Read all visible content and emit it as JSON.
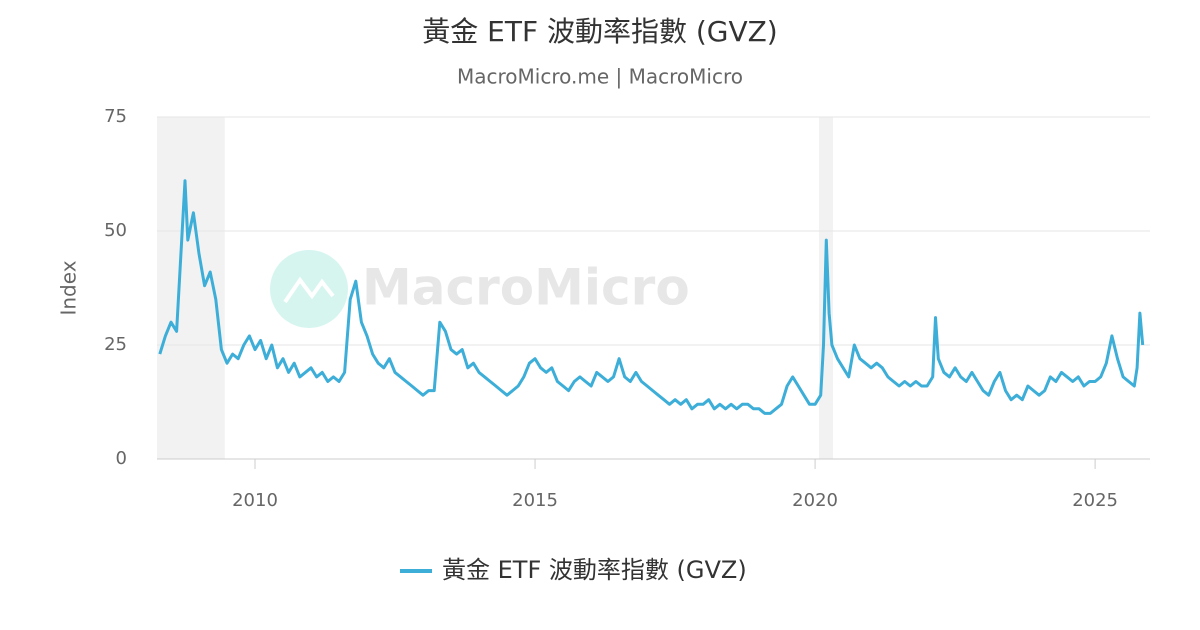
{
  "chart_data": {
    "type": "line",
    "title": "黃金 ETF 波動率指數 (GVZ)",
    "subtitle": "MacroMicro.me | MacroMicro",
    "y_label": "Index",
    "watermark": "MacroMicro",
    "xlim": [
      2008.25,
      2025.98
    ],
    "xticks": [
      2010,
      2015,
      2020,
      2025
    ],
    "ylim": [
      0,
      75
    ],
    "yticks": [
      0,
      25,
      50,
      75
    ],
    "grid": true,
    "legend": "bottom",
    "shaded_ranges": [
      [
        2008.25,
        2009.46
      ],
      [
        2020.07,
        2020.32
      ]
    ],
    "x": [
      2008.3,
      2008.4,
      2008.5,
      2008.6,
      2008.7,
      2008.75,
      2008.8,
      2008.9,
      2009.0,
      2009.1,
      2009.2,
      2009.3,
      2009.4,
      2009.5,
      2009.6,
      2009.7,
      2009.8,
      2009.9,
      2010.0,
      2010.1,
      2010.2,
      2010.3,
      2010.4,
      2010.5,
      2010.6,
      2010.7,
      2010.8,
      2010.9,
      2011.0,
      2011.1,
      2011.2,
      2011.3,
      2011.4,
      2011.5,
      2011.6,
      2011.7,
      2011.8,
      2011.9,
      2012.0,
      2012.1,
      2012.2,
      2012.3,
      2012.4,
      2012.5,
      2012.6,
      2012.7,
      2012.8,
      2012.9,
      2013.0,
      2013.1,
      2013.2,
      2013.3,
      2013.4,
      2013.5,
      2013.6,
      2013.7,
      2013.8,
      2013.9,
      2014.0,
      2014.1,
      2014.2,
      2014.3,
      2014.4,
      2014.5,
      2014.6,
      2014.7,
      2014.8,
      2014.9,
      2015.0,
      2015.1,
      2015.2,
      2015.3,
      2015.4,
      2015.5,
      2015.6,
      2015.7,
      2015.8,
      2015.9,
      2016.0,
      2016.1,
      2016.2,
      2016.3,
      2016.4,
      2016.5,
      2016.6,
      2016.7,
      2016.8,
      2016.9,
      2017.0,
      2017.1,
      2017.2,
      2017.3,
      2017.4,
      2017.5,
      2017.6,
      2017.7,
      2017.8,
      2017.9,
      2018.0,
      2018.1,
      2018.2,
      2018.3,
      2018.4,
      2018.5,
      2018.6,
      2018.7,
      2018.8,
      2018.9,
      2019.0,
      2019.1,
      2019.2,
      2019.3,
      2019.4,
      2019.5,
      2019.6,
      2019.7,
      2019.8,
      2019.9,
      2020.0,
      2020.1,
      2020.15,
      2020.2,
      2020.25,
      2020.3,
      2020.4,
      2020.5,
      2020.6,
      2020.7,
      2020.8,
      2020.9,
      2021.0,
      2021.1,
      2021.2,
      2021.3,
      2021.4,
      2021.5,
      2021.6,
      2021.7,
      2021.8,
      2021.9,
      2022.0,
      2022.1,
      2022.15,
      2022.2,
      2022.3,
      2022.4,
      2022.5,
      2022.6,
      2022.7,
      2022.8,
      2022.9,
      2023.0,
      2023.1,
      2023.2,
      2023.3,
      2023.4,
      2023.5,
      2023.6,
      2023.7,
      2023.8,
      2023.9,
      2024.0,
      2024.1,
      2024.2,
      2024.3,
      2024.4,
      2024.5,
      2024.6,
      2024.7,
      2024.8,
      2024.9,
      2025.0,
      2025.1,
      2025.2,
      2025.3,
      2025.4,
      2025.5,
      2025.6,
      2025.7,
      2025.75,
      2025.8,
      2025.85
    ],
    "series": [
      {
        "name": "黃金 ETF 波動率指數 (GVZ)",
        "color": "#3daed8",
        "values": [
          23,
          27,
          30,
          28,
          50,
          61,
          48,
          54,
          45,
          38,
          41,
          35,
          24,
          21,
          23,
          22,
          25,
          27,
          24,
          26,
          22,
          25,
          20,
          22,
          19,
          21,
          18,
          19,
          20,
          18,
          19,
          17,
          18,
          17,
          19,
          35,
          39,
          30,
          27,
          23,
          21,
          20,
          22,
          19,
          18,
          17,
          16,
          15,
          14,
          15,
          15,
          30,
          28,
          24,
          23,
          24,
          20,
          21,
          19,
          18,
          17,
          16,
          15,
          14,
          15,
          16,
          18,
          21,
          22,
          20,
          19,
          20,
          17,
          16,
          15,
          17,
          18,
          17,
          16,
          19,
          18,
          17,
          18,
          22,
          18,
          17,
          19,
          17,
          16,
          15,
          14,
          13,
          12,
          13,
          12,
          13,
          11,
          12,
          12,
          13,
          11,
          12,
          11,
          12,
          11,
          12,
          12,
          11,
          11,
          10,
          10,
          11,
          12,
          16,
          18,
          16,
          14,
          12,
          12,
          14,
          25,
          48,
          32,
          25,
          22,
          20,
          18,
          25,
          22,
          21,
          20,
          21,
          20,
          18,
          17,
          16,
          17,
          16,
          17,
          16,
          16,
          18,
          31,
          22,
          19,
          18,
          20,
          18,
          17,
          19,
          17,
          15,
          14,
          17,
          19,
          15,
          13,
          14,
          13,
          16,
          15,
          14,
          15,
          18,
          17,
          19,
          18,
          17,
          18,
          16,
          17,
          17,
          18,
          21,
          27,
          22,
          18,
          17,
          16,
          20,
          32,
          25
        ]
      }
    ]
  }
}
